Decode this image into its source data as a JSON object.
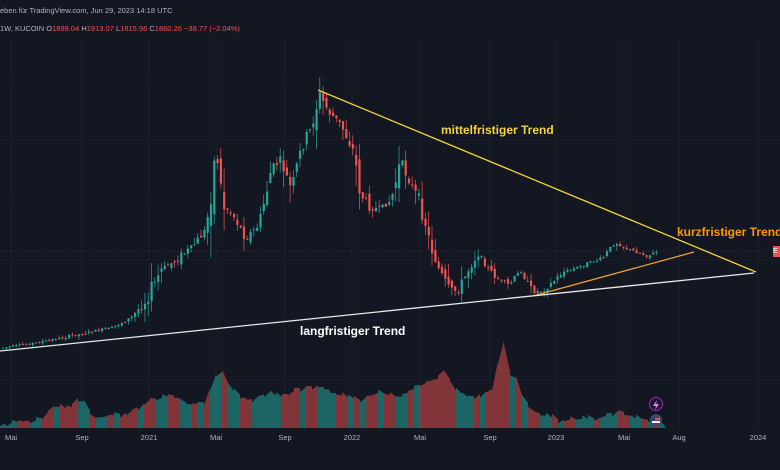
{
  "header": {
    "publisher_text": "eben für TradingView.com,",
    "date_text": "Jun 29, 2023 14:18 UTC",
    "interval": "1W",
    "exchange": "KUCOIN",
    "open_key": "O",
    "open": "1899.04",
    "high_key": "H",
    "high": "1913.07",
    "low_key": "L",
    "low": "1815.96",
    "close_key": "C",
    "close": "1860.26",
    "change": "−38.77 (−2.04%)"
  },
  "annotations": {
    "mid_term": "mittelfristiger Trend",
    "short_term": "kurzfristiger Trend",
    "long_term": "langfristiger Trend"
  },
  "x_axis": {
    "labels": [
      "Mai",
      "Sep",
      "2021",
      "Mai",
      "Sep",
      "2022",
      "Mai",
      "Sep",
      "2023",
      "Mai",
      "Aug",
      "2024"
    ]
  },
  "price_tag": "E",
  "colors": {
    "background": "#131722",
    "up": "#26a69a",
    "down": "#ef5350",
    "mid_trend_line": "#f5d33b",
    "short_trend_line": "#f0a030",
    "short_trend_label": "#ff9800",
    "long_trend_line": "#ffffff"
  },
  "icons": {
    "flash": "lightning-icon",
    "flag": "flag-icon"
  }
}
